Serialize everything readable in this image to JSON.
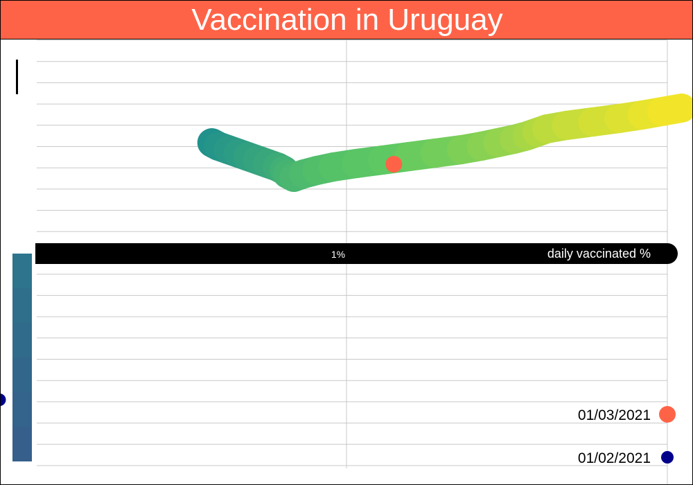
{
  "chart_data": {
    "type": "line",
    "title": "Vaccination in Uruguay",
    "xlabel": "daily vaccinated %",
    "ylabel": "",
    "x_tick_labels": [
      "1%"
    ],
    "x_ticks": [
      1
    ],
    "xlim": [
      0,
      2
    ],
    "x_scale": "linear",
    "y_scale": "linear",
    "grid": true,
    "grid_lines": "horizontal-and-vertical",
    "colormap": "viridis",
    "series": [
      {
        "x": [
          0.59,
          0.61,
          0.64,
          0.67,
          0.7,
          0.73,
          0.76,
          0.79,
          0.81,
          0.82,
          0.84,
          0.87,
          0.91,
          0.96,
          1.03,
          1.11,
          1.19,
          1.27,
          1.35,
          1.41,
          1.46,
          1.51,
          1.55,
          1.58,
          1.61,
          1.67,
          1.75,
          1.83,
          1.9,
          1.96,
          2.02
        ],
        "y": [
          32,
          31,
          30,
          29,
          28,
          27,
          26,
          25,
          24,
          23,
          22,
          23,
          24,
          25,
          26,
          27,
          28,
          29,
          30,
          31,
          32,
          33,
          34,
          35,
          36,
          37,
          38,
          39,
          40,
          41,
          42
        ],
        "color_by": "date"
      },
      {
        "x": [
          0.0,
          0.0,
          0.0,
          0.0,
          0.0,
          0.0,
          0.0
        ],
        "y": [
          -60,
          -50,
          -40,
          -30,
          -20,
          -10,
          0
        ],
        "color_by": "date"
      }
    ],
    "markers": [
      {
        "label": "01/03/2021",
        "color": "#ff6347",
        "x": 1.22,
        "y": 28
      },
      {
        "label": "01/02/2021",
        "color": "#00008b",
        "x": 0.02,
        "y": -40
      }
    ],
    "legend_placement": "bottom-right",
    "colors": {
      "title_bar": "#ff6347",
      "axis_bar": "#000000",
      "grid": "#c8c8c8",
      "axis_text": "#ffffff",
      "legend_text": "#000000"
    }
  }
}
